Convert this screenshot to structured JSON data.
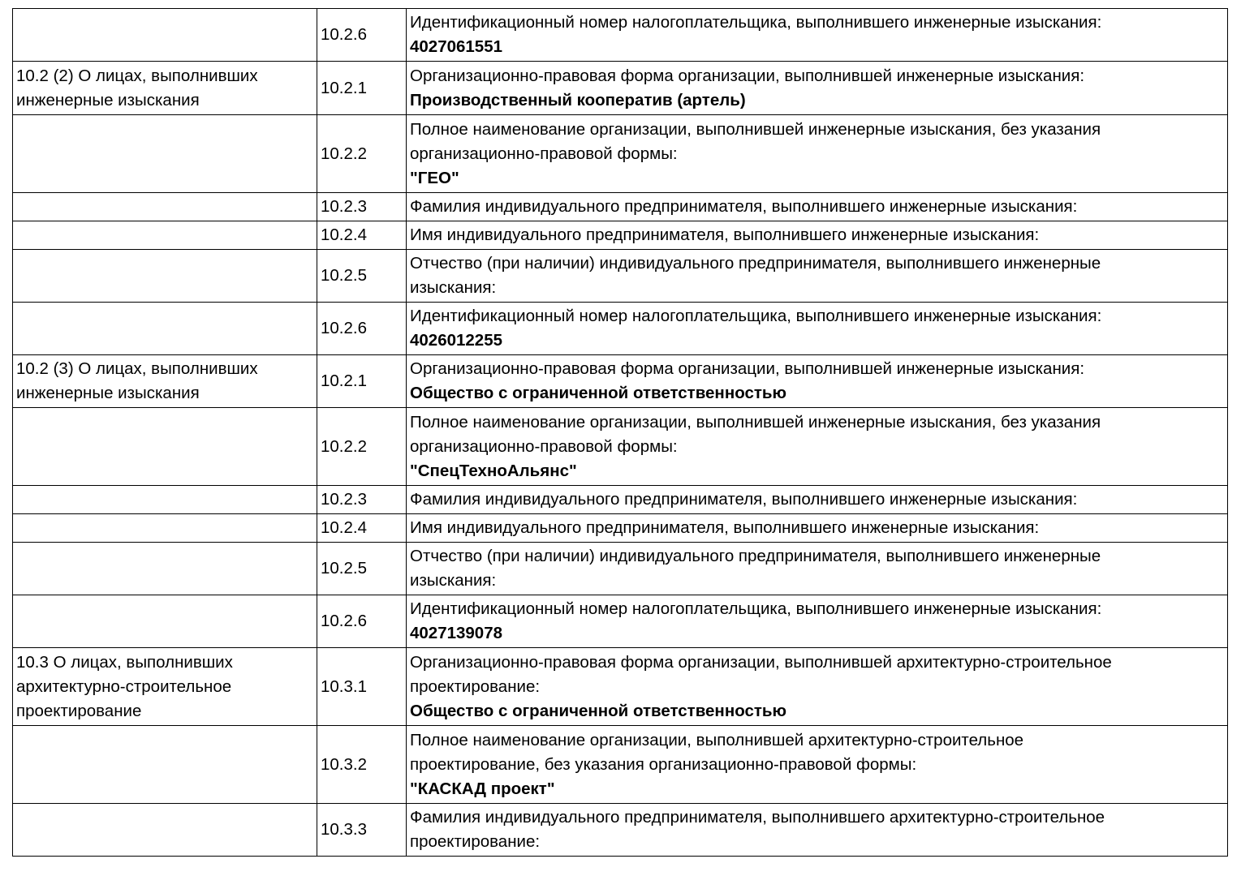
{
  "rows": [
    {
      "section": [],
      "code": "10.2.6",
      "label": [
        "Идентификационный номер налогоплательщика, выполнившего инженерные изыскания:"
      ],
      "value": "4027061551"
    },
    {
      "section": [
        "10.2 (2) О лицах, выполнивших",
        "инженерные изыскания"
      ],
      "code": "10.2.1",
      "label": [
        "Организационно-правовая форма организации, выполнившей инженерные изыскания:"
      ],
      "value": "Производственный кооператив (артель)"
    },
    {
      "section": [],
      "code": "10.2.2",
      "label": [
        "Полное наименование организации, выполнившей инженерные изыскания, без указания",
        "организационно-правовой формы:"
      ],
      "value": "\"ГЕО\""
    },
    {
      "section": [],
      "code": "10.2.3",
      "label": [
        "Фамилия индивидуального предпринимателя, выполнившего инженерные изыскания:"
      ],
      "value": ""
    },
    {
      "section": [],
      "code": "10.2.4",
      "label": [
        "Имя индивидуального предпринимателя, выполнившего инженерные изыскания:"
      ],
      "value": ""
    },
    {
      "section": [],
      "code": "10.2.5",
      "label": [
        "Отчество (при наличии) индивидуального предпринимателя, выполнившего инженерные",
        "изыскания:"
      ],
      "value": ""
    },
    {
      "section": [],
      "code": "10.2.6",
      "label": [
        "Идентификационный номер налогоплательщика, выполнившего инженерные изыскания:"
      ],
      "value": "4026012255"
    },
    {
      "section": [
        "10.2 (3) О лицах, выполнивших",
        "инженерные изыскания"
      ],
      "code": "10.2.1",
      "label": [
        "Организационно-правовая форма организации, выполнившей инженерные изыскания:"
      ],
      "value": "Общество с ограниченной ответственностью"
    },
    {
      "section": [],
      "code": "10.2.2",
      "label": [
        "Полное наименование организации, выполнившей инженерные изыскания, без указания",
        "организационно-правовой формы:"
      ],
      "value": "\"СпецТехноАльянс\""
    },
    {
      "section": [],
      "code": "10.2.3",
      "label": [
        "Фамилия индивидуального предпринимателя, выполнившего инженерные изыскания:"
      ],
      "value": ""
    },
    {
      "section": [],
      "code": "10.2.4",
      "label": [
        "Имя индивидуального предпринимателя, выполнившего инженерные изыскания:"
      ],
      "value": ""
    },
    {
      "section": [],
      "code": "10.2.5",
      "label": [
        "Отчество (при наличии) индивидуального предпринимателя, выполнившего инженерные",
        "изыскания:"
      ],
      "value": ""
    },
    {
      "section": [],
      "code": "10.2.6",
      "label": [
        "Идентификационный номер налогоплательщика, выполнившего инженерные изыскания:"
      ],
      "value": "4027139078"
    },
    {
      "section": [
        "10.3 О лицах, выполнивших",
        "архитектурно-строительное",
        "проектирование"
      ],
      "code": "10.3.1",
      "label": [
        "Организационно-правовая форма организации, выполнившей архитектурно-строительное",
        "проектирование:"
      ],
      "value": "Общество с ограниченной ответственностью"
    },
    {
      "section": [],
      "code": "10.3.2",
      "label": [
        "Полное наименование организации, выполнившей архитектурно-строительное",
        "проектирование, без указания организационно-правовой формы:"
      ],
      "value": "\"КАСКАД проект\""
    },
    {
      "section": [],
      "code": "10.3.3",
      "label": [
        "Фамилия индивидуального предпринимателя, выполнившего архитектурно-строительное",
        "проектирование:"
      ],
      "value": ""
    }
  ]
}
